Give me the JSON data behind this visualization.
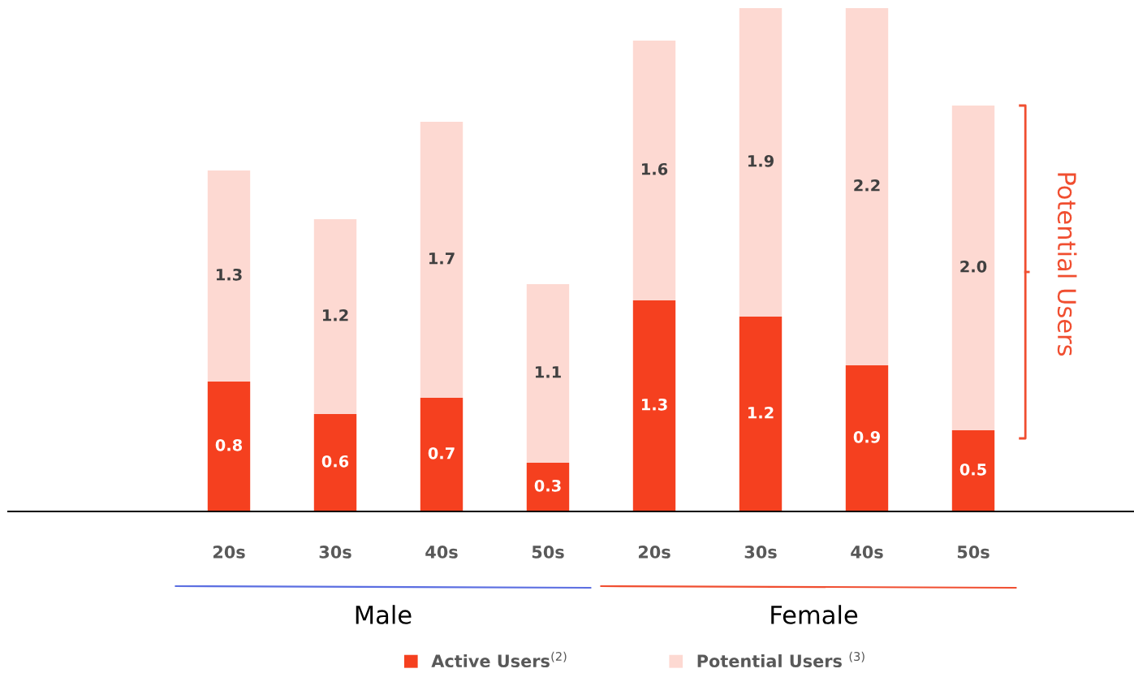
{
  "chart_data": {
    "type": "bar",
    "stacked": true,
    "legend": "bottom",
    "grid": false,
    "categories": [
      "20s",
      "30s",
      "40s",
      "50s",
      "20s",
      "30s",
      "40s",
      "50s"
    ],
    "series": [
      {
        "name": "Active Users$^{(2)}$",
        "color": "#f5401f",
        "values": [
          0.8,
          0.6,
          0.7,
          0.3,
          1.3,
          1.2,
          0.9,
          0.5
        ],
        "value_labels": [
          "0.8",
          "0.6",
          "0.7",
          "0.3",
          "1.3",
          "1.2",
          "0.9",
          "0.5"
        ]
      },
      {
        "name": "Potential Users $^{(3)}$",
        "color": "#fdd9d2",
        "values": [
          1.3,
          1.2,
          1.7,
          1.1,
          1.6,
          1.9,
          2.2,
          2.0
        ],
        "value_labels": [
          "1.3",
          "1.2",
          "1.7",
          "1.1",
          "1.6",
          "1.9",
          "2.2",
          "2.0"
        ]
      }
    ],
    "annotations": [
      "Male",
      "Female",
      "Potential Users"
    ]
  }
}
